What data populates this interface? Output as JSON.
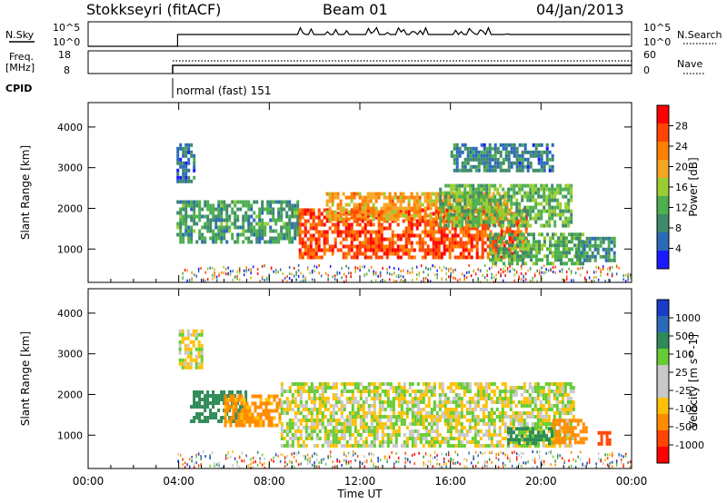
{
  "header": {
    "station": "Stokkseyri (fitACF)",
    "beam": "Beam 01",
    "date": "04/Jan/2013"
  },
  "strip_nsky": {
    "left_label": "N.Sky",
    "right_label": "N.Search",
    "left_ticks": [
      "10^5",
      "10^0"
    ],
    "right_ticks": [
      "10^5",
      "10^0"
    ]
  },
  "strip_freq": {
    "left_label_1": "Freq.",
    "left_label_2": "[MHz]",
    "left_ticks": [
      "18",
      "8"
    ],
    "right_label": "Nave",
    "right_ticks": [
      "60",
      "0"
    ]
  },
  "cpid": {
    "label": "CPID",
    "text": "normal (fast) 151"
  },
  "colors": {
    "power_scale": [
      "#1a1aff",
      "#2a6ab8",
      "#3f8a6a",
      "#4caf50",
      "#9acd32",
      "#f5a623",
      "#ff7f00",
      "#ff4500",
      "#ff0000"
    ],
    "velocity_scale": [
      "#1a3cc8",
      "#2a6ab8",
      "#2e8b57",
      "#66cc33",
      "#c8c8c8",
      "#c8c8c8",
      "#ffc107",
      "#ff8c00",
      "#ff4500",
      "#ff0000"
    ]
  },
  "chart_data": [
    {
      "type": "heatmap",
      "title": "Power",
      "ylabel": "Slant Range [km]",
      "y_ticks": [
        "1000",
        "2000",
        "3000",
        "4000"
      ],
      "ylim": [
        180,
        4600
      ],
      "x_ticks": [
        "00:00",
        "04:00",
        "08:00",
        "12:00",
        "16:00",
        "20:00",
        "00:00"
      ],
      "xlim_hours": [
        0,
        24
      ],
      "colorbar_label": "Power [dB]",
      "colorbar_ticks": [
        "4",
        "8",
        "12",
        "16",
        "20",
        "24",
        "28"
      ],
      "echo_regions": [
        {
          "t_start": 3.9,
          "t_end": 4.7,
          "r_min": 2700,
          "r_max": 3600,
          "power": 5
        },
        {
          "t_start": 3.9,
          "t_end": 9.3,
          "r_min": 1200,
          "r_max": 2200,
          "power": 9
        },
        {
          "t_start": 9.3,
          "t_end": 19.3,
          "r_min": 800,
          "r_max": 2000,
          "power": 26
        },
        {
          "t_start": 10.5,
          "t_end": 18.5,
          "r_min": 1700,
          "r_max": 2400,
          "power": 20
        },
        {
          "t_start": 15.5,
          "t_end": 21.3,
          "r_min": 1600,
          "r_max": 2600,
          "power": 12
        },
        {
          "t_start": 16.0,
          "t_end": 20.5,
          "r_min": 2900,
          "r_max": 3600,
          "power": 6
        },
        {
          "t_start": 17.7,
          "t_end": 21.8,
          "r_min": 600,
          "r_max": 1400,
          "power": 11
        },
        {
          "t_start": 21.5,
          "t_end": 23.2,
          "r_min": 700,
          "r_max": 1300,
          "power": 8
        }
      ]
    },
    {
      "type": "heatmap",
      "title": "Velocity",
      "ylabel": "Slant Range [km]",
      "xlabel": "Time UT",
      "y_ticks": [
        "1000",
        "2000",
        "3000",
        "4000"
      ],
      "ylim": [
        180,
        4600
      ],
      "x_ticks": [
        "00:00",
        "04:00",
        "08:00",
        "12:00",
        "16:00",
        "20:00",
        "00:00"
      ],
      "xlim_hours": [
        0,
        24
      ],
      "colorbar_label": "Velocity [m s^-1]",
      "colorbar_ticks": [
        "1000",
        "500",
        "100",
        "25",
        "-25",
        "-100",
        "-500",
        "-1000"
      ],
      "echo_regions": [
        {
          "t_start": 4.0,
          "t_end": 5.0,
          "r_min": 2700,
          "r_max": 3600,
          "velocity": 0
        },
        {
          "t_start": 4.5,
          "t_end": 7.0,
          "r_min": 1300,
          "r_max": 2100,
          "velocity": 200
        },
        {
          "t_start": 6.0,
          "t_end": 8.5,
          "r_min": 1200,
          "r_max": 2000,
          "velocity": -150
        },
        {
          "t_start": 8.5,
          "t_end": 21.5,
          "r_min": 700,
          "r_max": 2300,
          "velocity": 0
        },
        {
          "t_start": 18.5,
          "t_end": 20.5,
          "r_min": 800,
          "r_max": 1200,
          "velocity": 150
        },
        {
          "t_start": 20.5,
          "t_end": 22.0,
          "r_min": 800,
          "r_max": 1400,
          "velocity": -200
        },
        {
          "t_start": 22.5,
          "t_end": 23.1,
          "r_min": 750,
          "r_max": 1100,
          "velocity": -900
        }
      ]
    }
  ]
}
